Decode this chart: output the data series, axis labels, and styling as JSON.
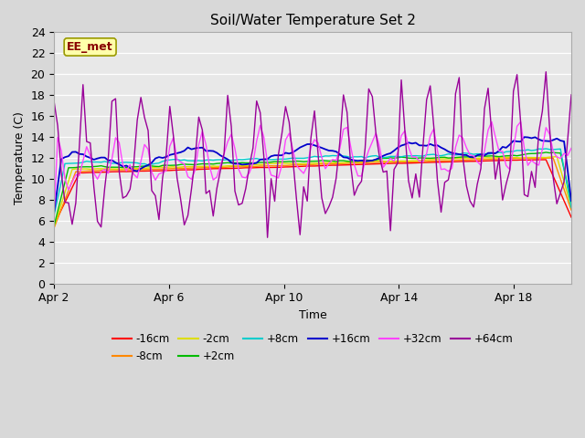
{
  "title": "Soil/Water Temperature Set 2",
  "xlabel": "Time",
  "ylabel": "Temperature (C)",
  "ylim": [
    0,
    24
  ],
  "yticks": [
    0,
    2,
    4,
    6,
    8,
    10,
    12,
    14,
    16,
    18,
    20,
    22,
    24
  ],
  "xtick_labels": [
    "Apr 2",
    "Apr 6",
    "Apr 10",
    "Apr 14",
    "Apr 18"
  ],
  "xtick_positions": [
    2,
    6,
    10,
    14,
    18
  ],
  "fig_bg_color": "#d8d8d8",
  "plot_bg_color": "#e8e8e8",
  "series_colors": {
    "-16cm": "#ff0000",
    "-8cm": "#ff8800",
    "-2cm": "#dddd00",
    "+2cm": "#00bb00",
    "+8cm": "#00cccc",
    "+16cm": "#0000cc",
    "+32cm": "#ff44ff",
    "+64cm": "#990099"
  },
  "annotation_text": "EE_met",
  "annotation_box_color": "#ffffaa",
  "annotation_text_color": "#880000",
  "annotation_border_color": "#999900",
  "grid_color": "#ffffff",
  "legend_row1": [
    "-16cm",
    "-8cm",
    "-2cm",
    "+2cm",
    "+8cm",
    "+16cm"
  ],
  "legend_row2": [
    "+32cm",
    "+64cm"
  ]
}
